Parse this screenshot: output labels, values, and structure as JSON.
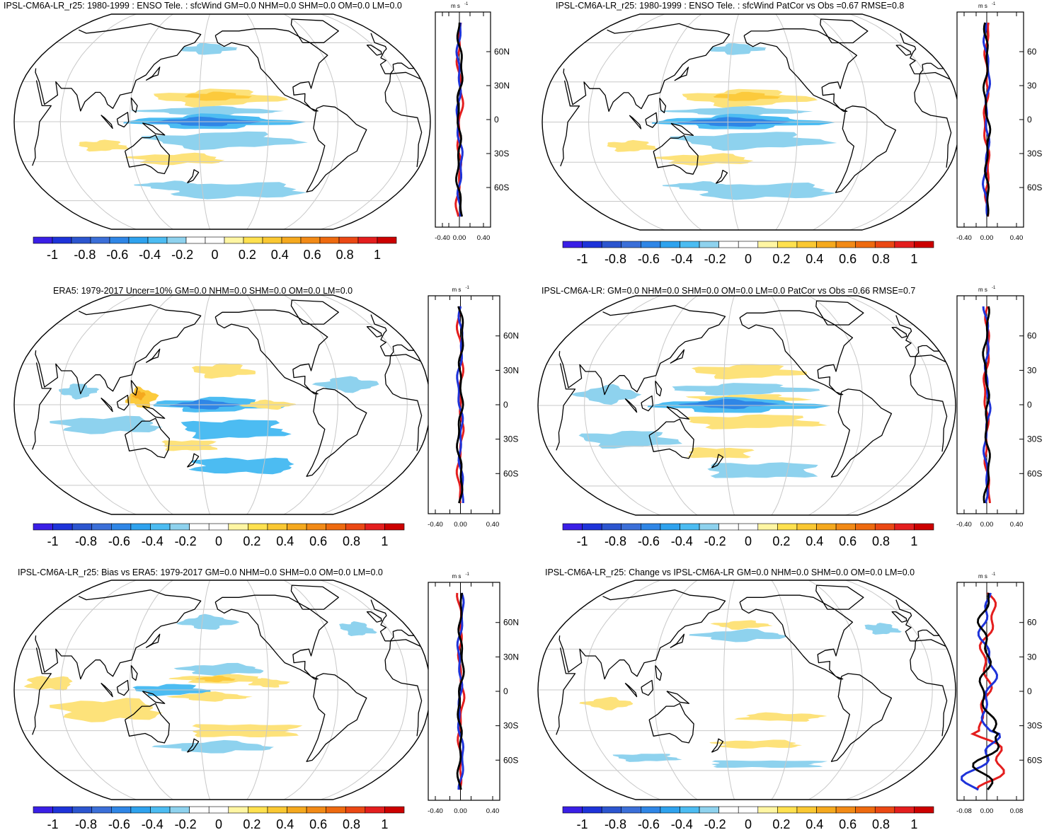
{
  "colorbar": {
    "colors": [
      "#3a1fe6",
      "#1e33d9",
      "#2c55cf",
      "#3b6fd8",
      "#2f86e6",
      "#2ea2ee",
      "#4cbcf2",
      "#8ed2ee",
      "#ffffff",
      "#ffffff",
      "#fff6a3",
      "#ffe14f",
      "#fac832",
      "#f5a91e",
      "#f28a16",
      "#ee6a0f",
      "#eb4814",
      "#e41e1e",
      "#cc0000"
    ],
    "labels": [
      "-1",
      "-0.8",
      "-0.6",
      "-0.4",
      "-0.2",
      "0",
      "0.2",
      "0.4",
      "0.6",
      "0.8",
      "1"
    ]
  },
  "lat_labels_full": [
    "60N",
    "30N",
    "0",
    "30S",
    "60S"
  ],
  "lat_labels_cut": [
    "60",
    "30",
    "0",
    "30S",
    "60S"
  ],
  "unit_label": "m s",
  "unit_exp": "-1",
  "panels": [
    {
      "id": "model",
      "title": "IPSL-CM6A-LR_r25: 1980-1999 : ENSO Tele. : sfcWind GM=0.0 NHM=0.0 SHM=0.0 OM=0.0 LM=0.0",
      "profile_ticks": [
        "-0.40",
        "0.00",
        "0.40"
      ],
      "lat_style": "full",
      "blobs": [
        {
          "c": "#fde27a",
          "lon": -165,
          "lat": 18,
          "rx": 50,
          "ry": 6
        },
        {
          "c": "#fcca3c",
          "lon": -165,
          "lat": 19,
          "rx": 25,
          "ry": 3
        },
        {
          "c": "#8ed2ee",
          "lon": -170,
          "lat": 8,
          "rx": 55,
          "ry": 3
        },
        {
          "c": "#4cbcf2",
          "lon": -170,
          "lat": 0,
          "rx": 65,
          "ry": 5
        },
        {
          "c": "#2f86e6",
          "lon": -175,
          "lat": 0,
          "rx": 40,
          "ry": 3
        },
        {
          "c": "#8ed2ee",
          "lon": -160,
          "lat": -14,
          "rx": 60,
          "ry": 6
        },
        {
          "c": "#fde27a",
          "lon": 160,
          "lat": -28,
          "rx": 40,
          "ry": 4
        },
        {
          "c": "#8ed2ee",
          "lon": -150,
          "lat": -52,
          "rx": 70,
          "ry": 6
        },
        {
          "c": "#8ed2ee",
          "lon": 150,
          "lat": -48,
          "rx": 30,
          "ry": 3
        },
        {
          "c": "#8ed2ee",
          "lon": -175,
          "lat": 55,
          "rx": 25,
          "ry": 4
        },
        {
          "c": "#fde27a",
          "lon": 95,
          "lat": -18,
          "rx": 20,
          "ry": 4
        }
      ]
    },
    {
      "id": "model-patcor",
      "title": "IPSL-CM6A-LR_r25: 1980-1999 : ENSO Tele. : sfcWind PatCor vs Obs =0.67 RMSE=0.8",
      "profile_ticks": [
        "-0.40",
        "0.00",
        "0.40"
      ],
      "lat_style": "cut",
      "blobs": [
        {
          "c": "#fde27a",
          "lon": -165,
          "lat": 18,
          "rx": 50,
          "ry": 6
        },
        {
          "c": "#fcca3c",
          "lon": -165,
          "lat": 19,
          "rx": 25,
          "ry": 3
        },
        {
          "c": "#8ed2ee",
          "lon": -170,
          "lat": 8,
          "rx": 55,
          "ry": 3
        },
        {
          "c": "#4cbcf2",
          "lon": -170,
          "lat": 0,
          "rx": 65,
          "ry": 5
        },
        {
          "c": "#2f86e6",
          "lon": -175,
          "lat": 0,
          "rx": 40,
          "ry": 3
        },
        {
          "c": "#8ed2ee",
          "lon": -160,
          "lat": -14,
          "rx": 60,
          "ry": 6
        },
        {
          "c": "#fde27a",
          "lon": 160,
          "lat": -28,
          "rx": 40,
          "ry": 4
        },
        {
          "c": "#8ed2ee",
          "lon": -150,
          "lat": -52,
          "rx": 70,
          "ry": 6
        },
        {
          "c": "#8ed2ee",
          "lon": 150,
          "lat": -48,
          "rx": 30,
          "ry": 3
        },
        {
          "c": "#8ed2ee",
          "lon": -175,
          "lat": 55,
          "rx": 25,
          "ry": 4
        },
        {
          "c": "#fde27a",
          "lon": 95,
          "lat": -18,
          "rx": 20,
          "ry": 4
        }
      ]
    },
    {
      "id": "obs",
      "title": "ERA5: 1979-2017 Uncer=10% GM=0.0 NHM=0.0 SHM=0.0 OM=0.0 LM=0.0",
      "profile_ticks": [
        "-0.40",
        "0.00",
        "0.40"
      ],
      "lat_style": "full",
      "blobs": [
        {
          "c": "#fde27a",
          "lon": -160,
          "lat": 25,
          "rx": 25,
          "ry": 5
        },
        {
          "c": "#4cbcf2",
          "lon": -165,
          "lat": 0,
          "rx": 50,
          "ry": 5
        },
        {
          "c": "#2f86e6",
          "lon": -175,
          "lat": 0,
          "rx": 25,
          "ry": 3
        },
        {
          "c": "#fcca3c",
          "lon": 130,
          "lat": 5,
          "rx": 12,
          "ry": 7
        },
        {
          "c": "#f5a91e",
          "lon": 128,
          "lat": 7,
          "rx": 5,
          "ry": 3
        },
        {
          "c": "#fde27a",
          "lon": -120,
          "lat": 0,
          "rx": 20,
          "ry": 3
        },
        {
          "c": "#8ed2ee",
          "lon": 100,
          "lat": -15,
          "rx": 45,
          "ry": 6
        },
        {
          "c": "#4cbcf2",
          "lon": -150,
          "lat": -18,
          "rx": 45,
          "ry": 7
        },
        {
          "c": "#4cbcf2",
          "lon": -140,
          "lat": -45,
          "rx": 50,
          "ry": 6
        },
        {
          "c": "#8ed2ee",
          "lon": -50,
          "lat": 15,
          "rx": 25,
          "ry": 5
        },
        {
          "c": "#8ed2ee",
          "lon": 75,
          "lat": 10,
          "rx": 15,
          "ry": 5
        },
        {
          "c": "#fde27a",
          "lon": 170,
          "lat": -30,
          "rx": 25,
          "ry": 4
        }
      ]
    },
    {
      "id": "model-reg",
      "title": "IPSL-CM6A-LR: GM=0.0 NHM=0.0 SHM=0.0 OM=0.0 LM=0.0 PatCor vs Obs =0.66 RMSE=0.7",
      "profile_ticks": [
        "-0.40",
        "0.00",
        "0.40"
      ],
      "lat_style": "cut",
      "blobs": [
        {
          "c": "#fde27a",
          "lon": -160,
          "lat": 25,
          "rx": 45,
          "ry": 5
        },
        {
          "c": "#8ed2ee",
          "lon": -165,
          "lat": 12,
          "rx": 55,
          "ry": 4
        },
        {
          "c": "#fde27a",
          "lon": -160,
          "lat": 5,
          "rx": 45,
          "ry": 3
        },
        {
          "c": "#4cbcf2",
          "lon": -170,
          "lat": 0,
          "rx": 65,
          "ry": 5
        },
        {
          "c": "#2f86e6",
          "lon": -175,
          "lat": 1,
          "rx": 35,
          "ry": 3
        },
        {
          "c": "#fde27a",
          "lon": -155,
          "lat": -12,
          "rx": 55,
          "ry": 5
        },
        {
          "c": "#8ed2ee",
          "lon": 95,
          "lat": -25,
          "rx": 40,
          "ry": 6
        },
        {
          "c": "#8ed2ee",
          "lon": -145,
          "lat": -48,
          "rx": 55,
          "ry": 6
        },
        {
          "c": "#8ed2ee",
          "lon": 80,
          "lat": 8,
          "rx": 25,
          "ry": 6
        },
        {
          "c": "#fde27a",
          "lon": 175,
          "lat": -35,
          "rx": 30,
          "ry": 4
        }
      ]
    },
    {
      "id": "bias",
      "title": "IPSL-CM6A-LR_r25: Bias vs ERA5: 1979-2017 GM=0.0 NHM=0.0 SHM=0.0 OM=0.0 LM=0.0",
      "profile_ticks": [
        "-0.40",
        "0.00",
        "0.40"
      ],
      "lat_style": "full",
      "blobs": [
        {
          "c": "#8ed2ee",
          "lon": -160,
          "lat": 15,
          "rx": 35,
          "ry": 4
        },
        {
          "c": "#fde27a",
          "lon": -160,
          "lat": 8,
          "rx": 40,
          "ry": 3
        },
        {
          "c": "#fcca3c",
          "lon": -165,
          "lat": 8,
          "rx": 15,
          "ry": 2
        },
        {
          "c": "#4cbcf2",
          "lon": 155,
          "lat": 0,
          "rx": 30,
          "ry": 4
        },
        {
          "c": "#fde27a",
          "lon": -170,
          "lat": -5,
          "rx": 30,
          "ry": 3
        },
        {
          "c": "#fde27a",
          "lon": 100,
          "lat": -15,
          "rx": 45,
          "ry": 8
        },
        {
          "c": "#fde27a",
          "lon": -140,
          "lat": -30,
          "rx": 50,
          "ry": 5
        },
        {
          "c": "#8ed2ee",
          "lon": -165,
          "lat": -42,
          "rx": 50,
          "ry": 4
        },
        {
          "c": "#8ed2ee",
          "lon": -175,
          "lat": 50,
          "rx": 25,
          "ry": 5
        },
        {
          "c": "#8ed2ee",
          "lon": -30,
          "lat": 45,
          "rx": 15,
          "ry": 5
        },
        {
          "c": "#fde27a",
          "lon": -120,
          "lat": 5,
          "rx": 15,
          "ry": 3
        },
        {
          "c": "#fde27a",
          "lon": 50,
          "lat": 5,
          "rx": 20,
          "ry": 5
        }
      ]
    },
    {
      "id": "change",
      "title": "IPSL-CM6A-LR_r25: Change vs IPSL-CM6A-LR GM=0.0 NHM=0.0 SHM=0.0 OM=0.0 LM=0.0",
      "profile_ticks": [
        "-0.08",
        "0.00",
        "0.08"
      ],
      "lat_style": "cut",
      "blobs": [
        {
          "c": "#8ed2ee",
          "lon": -165,
          "lat": 40,
          "rx": 40,
          "ry": 4
        },
        {
          "c": "#fde27a",
          "lon": -165,
          "lat": 48,
          "rx": 25,
          "ry": 3
        },
        {
          "c": "#8ed2ee",
          "lon": -140,
          "lat": -55,
          "rx": 60,
          "ry": 3
        },
        {
          "c": "#fde27a",
          "lon": -150,
          "lat": -40,
          "rx": 40,
          "ry": 3
        },
        {
          "c": "#fde27a",
          "lon": -130,
          "lat": -20,
          "rx": 35,
          "ry": 3
        },
        {
          "c": "#fde27a",
          "lon": 80,
          "lat": -10,
          "rx": 20,
          "ry": 4
        },
        {
          "c": "#8ed2ee",
          "lon": -30,
          "lat": 45,
          "rx": 15,
          "ry": 4
        },
        {
          "c": "#8ed2ee",
          "lon": 100,
          "lat": -50,
          "rx": 30,
          "ry": 3
        }
      ]
    }
  ]
}
